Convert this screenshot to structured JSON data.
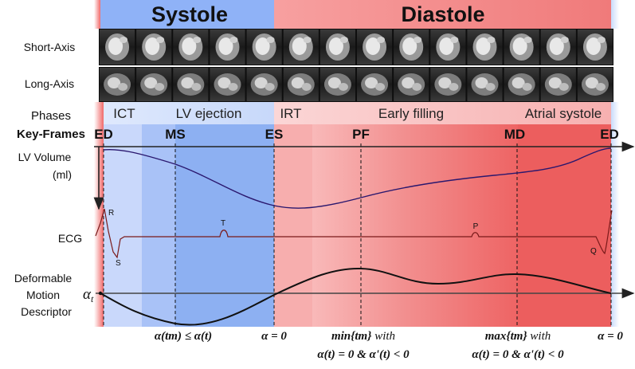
{
  "header": {
    "systole": "Systole",
    "diastole": "Diastole"
  },
  "row_labels": {
    "short_axis": "Short-Axis",
    "long_axis": "Long-Axis",
    "phases": "Phases",
    "key_frames": "Key-Frames",
    "lv_volume_line1": "LV Volume",
    "lv_volume_line2": "(ml)",
    "ecg": "ECG",
    "descriptor_line1": "Deformable",
    "descriptor_line2": "Motion",
    "descriptor_line3": "Descriptor",
    "alpha_symbol": "α",
    "alpha_subscript": "t"
  },
  "phases": [
    "ICT",
    "LV ejection",
    "IRT",
    "Early filling",
    "Atrial systole"
  ],
  "key_frames": [
    "ED",
    "MS",
    "ES",
    "PF",
    "MD",
    "ED"
  ],
  "ecg_waves": [
    "R",
    "S",
    "T",
    "P",
    "Q"
  ],
  "annotations": {
    "ms_rule_1": "α(tm) ≤ α(t)",
    "es_rule": "α = 0",
    "pf_rule_bold": "min{tm}",
    "pf_rule_italic": " with",
    "pf_rule_line2": "α(t) = 0 & α'(t) < 0",
    "md_rule_bold": "max{tm}",
    "md_rule_italic": " with",
    "md_rule_line2": "α(t) = 0 & α'(t) < 0",
    "ed_rule": "α = 0"
  },
  "colors": {
    "systole_header": "#8fb2f7",
    "diastole_header": "#f78b8b",
    "ict": "#c9d8fb",
    "ejection_early": "#a9c2f7",
    "ejection_main": "#8db0f2",
    "irt": "#f7aeae",
    "early_filling_a": "#f49a9a",
    "early_filling_b": "#f08a8a",
    "late_diastole": "#f07a7a",
    "atrial": "#ec5e5e",
    "volume_curve": "#2a176e",
    "ecg_curve": "#7a1a1a",
    "descriptor_curve": "#111111"
  }
}
